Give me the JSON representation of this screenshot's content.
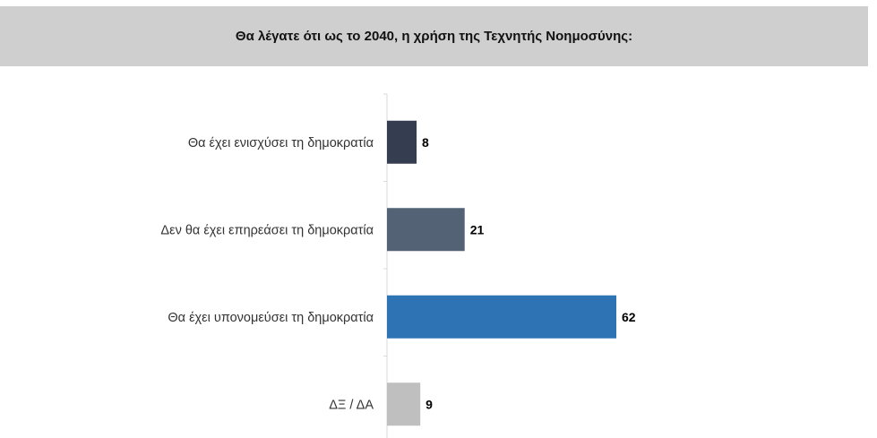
{
  "chart_data": {
    "type": "bar",
    "orientation": "horizontal",
    "title": "Θα λέγατε ότι ως το 2040, η χρήση της Τεχνητής Νοημοσύνης:",
    "categories": [
      "Θα έχει ενισχύσει τη δημοκρατία",
      "Δεν θα έχει επηρεάσει τη δημοκρατία",
      "Θα έχει υπονομεύσει τη δημοκρατία",
      "ΔΞ / ΔΑ"
    ],
    "values": [
      8,
      21,
      62,
      9
    ],
    "value_labels": [
      "8",
      "21",
      "62",
      "9"
    ],
    "colors": [
      "#343e50",
      "#536275",
      "#2e74b5",
      "#bfbfbf"
    ],
    "xlim": [
      0,
      62
    ],
    "grid": false,
    "legend": "none"
  }
}
